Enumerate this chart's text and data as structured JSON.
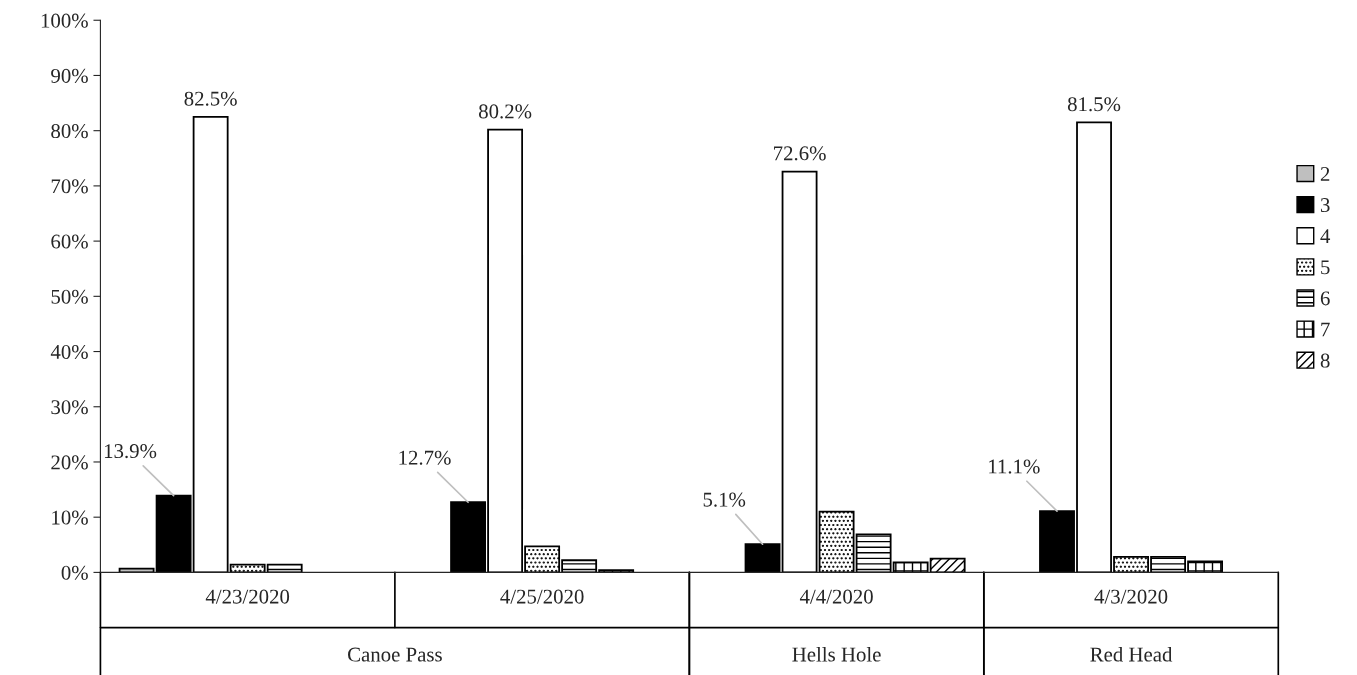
{
  "chart_data": {
    "type": "bar",
    "categories": [
      "4/23/2020",
      "4/25/2020",
      "4/4/2020",
      "4/3/2020"
    ],
    "annotations": [
      "Canoe Pass",
      "Hells Hole",
      "Red Head"
    ],
    "ylim": [
      0,
      100
    ],
    "yticks": [
      {
        "value": 0,
        "label": "0%"
      },
      {
        "value": 10,
        "label": "10%"
      },
      {
        "value": 20,
        "label": "20%"
      },
      {
        "value": 30,
        "label": "30%"
      },
      {
        "value": 40,
        "label": "40%"
      },
      {
        "value": 50,
        "label": "50%"
      },
      {
        "value": 60,
        "label": "60%"
      },
      {
        "value": 70,
        "label": "70%"
      },
      {
        "value": 80,
        "label": "80%"
      },
      {
        "value": 90,
        "label": "90%"
      },
      {
        "value": 100,
        "label": "100%"
      }
    ],
    "grid": false,
    "legend": "right",
    "series": [
      {
        "name": "2",
        "color": "#bfbfbf",
        "values": [
          0.7,
          null,
          null,
          null
        ]
      },
      {
        "name": "3",
        "color": "#000000",
        "values": [
          13.9,
          12.7,
          5.1,
          11.1
        ],
        "value_labels": [
          "13.9%",
          "12.7%",
          "5.1%",
          "11.1%"
        ]
      },
      {
        "name": "4",
        "color": "#ffffff",
        "values": [
          82.5,
          80.2,
          72.6,
          81.5
        ],
        "value_labels": [
          "82.5%",
          "80.2%",
          "72.6%",
          "81.5%"
        ]
      },
      {
        "name": "5",
        "color": "#000000",
        "values": [
          1.4,
          4.7,
          11.0,
          2.8
        ]
      },
      {
        "name": "6",
        "color": "#000000",
        "values": [
          1.4,
          2.2,
          6.9,
          2.8
        ]
      },
      {
        "name": "7",
        "color": "#000000",
        "values": [
          null,
          0.4,
          1.8,
          2.0
        ]
      },
      {
        "name": "8",
        "color": "#000000",
        "values": [
          null,
          null,
          2.5,
          null
        ]
      }
    ]
  }
}
